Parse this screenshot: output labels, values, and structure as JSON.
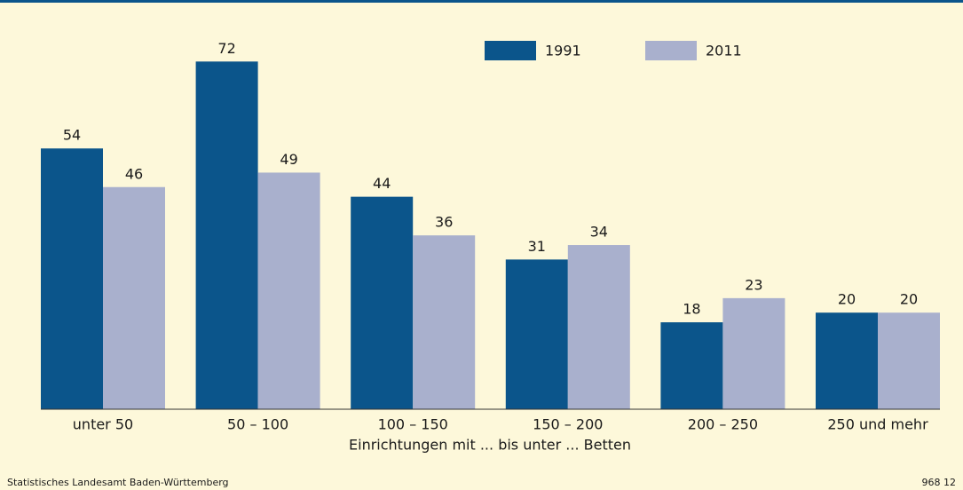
{
  "chart_data": {
    "type": "bar",
    "categories": [
      "unter 50",
      "50 – 100",
      "100 – 150",
      "150 – 200",
      "200 – 250",
      "250 und mehr"
    ],
    "x_label": "Einrichtungen mit ... bis unter ... Betten",
    "series": [
      {
        "name": "1991",
        "color": "#0b558b",
        "values": [
          54,
          72,
          44,
          31,
          18,
          20
        ]
      },
      {
        "name": "2011",
        "color": "#a9b0cd",
        "values": [
          46,
          49,
          36,
          34,
          23,
          20
        ]
      }
    ],
    "legend": "top"
  },
  "footer": {
    "source": "Statistisches Landesamt Baden-Württemberg",
    "code": "968 12"
  }
}
